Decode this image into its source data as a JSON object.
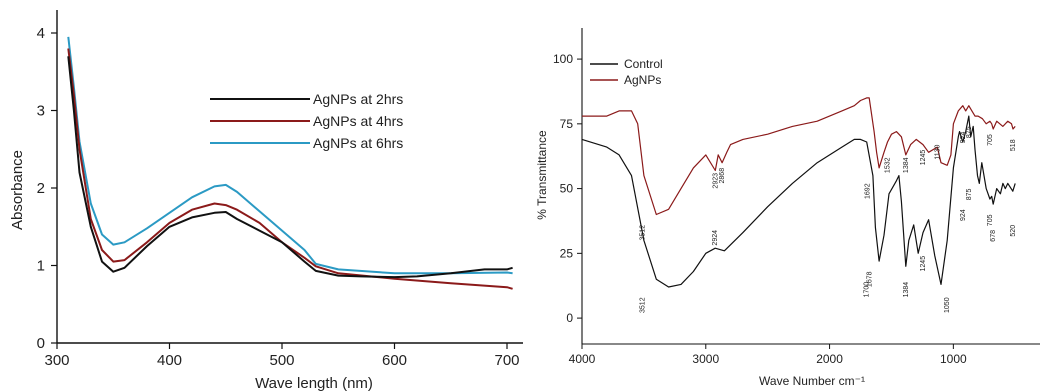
{
  "chart_data": [
    {
      "type": "line",
      "title": "",
      "xlabel": "Wave length (nm)",
      "ylabel": "Absorbance",
      "xlim": [
        300,
        700
      ],
      "ylim": [
        0,
        4
      ],
      "xticks": [
        "300",
        "400",
        "500",
        "600",
        "700"
      ],
      "yticks": [
        "0",
        "1",
        "2",
        "3",
        "4"
      ],
      "grid": false,
      "legend_placement": "top-right",
      "series": [
        {
          "name": "AgNPs at 2hrs",
          "color": "#111111",
          "x": [
            310,
            315,
            320,
            330,
            340,
            350,
            360,
            380,
            400,
            420,
            440,
            450,
            460,
            480,
            500,
            520,
            530,
            550,
            570,
            600,
            620,
            650,
            680,
            700,
            705
          ],
          "y": [
            3.7,
            3.0,
            2.2,
            1.5,
            1.05,
            0.92,
            0.97,
            1.25,
            1.5,
            1.62,
            1.68,
            1.69,
            1.6,
            1.45,
            1.3,
            1.05,
            0.93,
            0.87,
            0.86,
            0.85,
            0.86,
            0.9,
            0.95,
            0.95,
            0.97
          ]
        },
        {
          "name": "AgNPs at 4hrs",
          "color": "#8b1a1a",
          "x": [
            310,
            315,
            320,
            330,
            340,
            350,
            360,
            380,
            400,
            420,
            440,
            450,
            460,
            480,
            500,
            520,
            530,
            550,
            600,
            650,
            700,
            705
          ],
          "y": [
            3.8,
            3.2,
            2.5,
            1.6,
            1.2,
            1.05,
            1.07,
            1.3,
            1.55,
            1.72,
            1.8,
            1.78,
            1.72,
            1.55,
            1.3,
            1.1,
            0.99,
            0.9,
            0.83,
            0.77,
            0.72,
            0.7
          ]
        },
        {
          "name": "AgNPs at 6hrs",
          "color": "#2b9ac4",
          "x": [
            310,
            315,
            320,
            330,
            340,
            350,
            360,
            380,
            400,
            420,
            440,
            450,
            460,
            480,
            500,
            520,
            530,
            550,
            600,
            650,
            700,
            705
          ],
          "y": [
            3.95,
            3.3,
            2.6,
            1.8,
            1.4,
            1.27,
            1.3,
            1.48,
            1.68,
            1.88,
            2.02,
            2.04,
            1.95,
            1.7,
            1.45,
            1.2,
            1.02,
            0.95,
            0.9,
            0.9,
            0.91,
            0.9
          ]
        }
      ]
    },
    {
      "type": "line",
      "title": "",
      "xlabel": "Wave Number cm⁻¹",
      "ylabel": "% Transmittance",
      "xlim": [
        4000,
        300
      ],
      "ylim": [
        -10,
        112
      ],
      "xticks": [
        "4000",
        "3000",
        "2000",
        "1000"
      ],
      "yticks": [
        "0",
        "25",
        "50",
        "75",
        "100"
      ],
      "grid": false,
      "legend_placement": "top-left",
      "series": [
        {
          "name": "Control",
          "color": "#111111",
          "x": [
            4000,
            3800,
            3700,
            3600,
            3500,
            3400,
            3300,
            3200,
            3100,
            3000,
            2924,
            2850,
            2700,
            2500,
            2300,
            2100,
            1900,
            1800,
            1750,
            1700,
            1650,
            1630,
            1600,
            1560,
            1520,
            1460,
            1440,
            1420,
            1384,
            1360,
            1320,
            1284,
            1245,
            1200,
            1150,
            1100,
            1050,
            1000,
            960,
            950,
            924,
            900,
            875,
            860,
            840,
            825,
            805,
            790,
            770,
            735,
            705,
            690,
            678,
            650,
            620,
            600,
            580,
            560,
            520,
            500
          ],
          "y": [
            69,
            66,
            63,
            55,
            30,
            15,
            12,
            13,
            18,
            25,
            27,
            26,
            33,
            43,
            52,
            60,
            66,
            69,
            69,
            68,
            55,
            35,
            22,
            32,
            48,
            53,
            55,
            45,
            20,
            30,
            36,
            25,
            33,
            38,
            24,
            13,
            30,
            58,
            70,
            72,
            68,
            72,
            78,
            70,
            74,
            65,
            55,
            52,
            60,
            50,
            46,
            47,
            44,
            50,
            48,
            52,
            50,
            52,
            49,
            52
          ]
        },
        {
          "name": "AgNPs",
          "color": "#8b1a1a",
          "x": [
            4000,
            3800,
            3700,
            3600,
            3550,
            3500,
            3400,
            3300,
            3200,
            3100,
            3000,
            2923,
            2900,
            2868,
            2830,
            2800,
            2700,
            2500,
            2300,
            2100,
            1900,
            1800,
            1750,
            1700,
            1680,
            1640,
            1620,
            1600,
            1560,
            1532,
            1500,
            1460,
            1420,
            1384,
            1345,
            1300,
            1245,
            1200,
            1130,
            1100,
            1050,
            1020,
            1000,
            960,
            924,
            900,
            875,
            850,
            825,
            800,
            765,
            735,
            705,
            690,
            678,
            650,
            600,
            560,
            530,
            518,
            500
          ],
          "y": [
            78,
            78,
            80,
            80,
            75,
            55,
            40,
            42,
            50,
            58,
            63,
            57,
            63,
            60,
            64,
            67,
            69,
            71,
            74,
            76,
            80,
            82,
            84,
            85,
            85,
            72,
            64,
            58,
            64,
            68,
            71,
            72,
            70,
            63,
            67,
            69,
            67,
            64,
            66,
            60,
            59,
            63,
            75,
            80,
            82,
            80,
            82,
            80,
            78,
            78,
            77,
            75,
            76,
            75,
            73,
            76,
            74,
            76,
            75,
            73,
            74
          ]
        }
      ],
      "annotations": [
        "3512",
        "2924",
        "1700",
        "1678",
        "1384",
        "1245",
        "1050",
        "924",
        "875",
        "705",
        "678",
        "520",
        "3512",
        "2923",
        "2868",
        "1692",
        "1532",
        "1384",
        "1245",
        "1130",
        "924",
        "875",
        "705",
        "518"
      ]
    }
  ]
}
